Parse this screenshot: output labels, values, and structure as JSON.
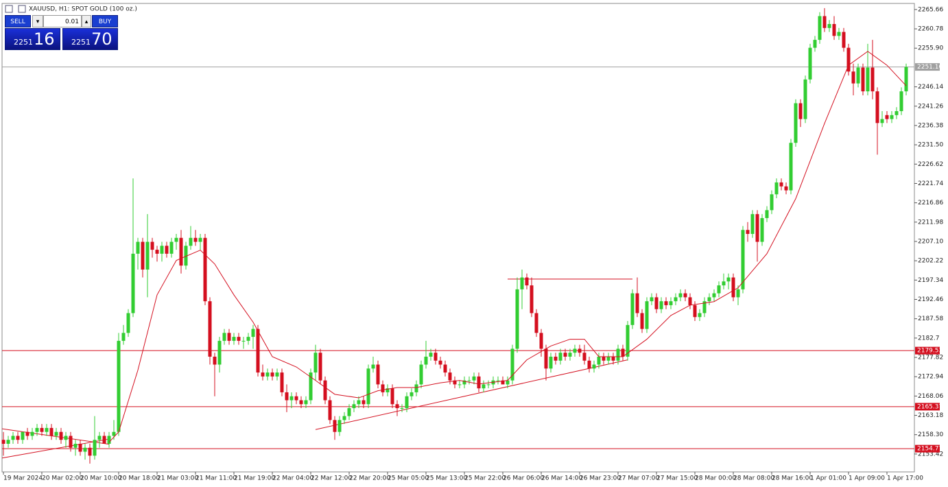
{
  "chart_data": {
    "type": "candlestick",
    "title": "XAUUSD, H1:  SPOT GOLD (100 oz.)",
    "trade_panel": {
      "sell": "SELL",
      "lot": "0.01",
      "buy": "BUY",
      "bid_big": "2251",
      "bid_small": "16",
      "ask_big": "2251",
      "ask_small": "70"
    },
    "up_color": "#32cd32",
    "down_color": "#d40f1f",
    "ylim": [
      2148.9,
      2267.2
    ],
    "yticks": [
      2265.66,
      2260.78,
      {
        "value": 2255.9,
        "label": "2255.90"
      },
      2246.14,
      2241.26,
      2236.38,
      {
        "value": 2231.5,
        "label": "2231.50"
      },
      2226.62,
      2221.74,
      2216.86,
      2211.98,
      {
        "value": 2207.1,
        "label": "2207.10"
      },
      2202.22,
      2197.34,
      2192.46,
      2187.58,
      2182.7,
      2177.82,
      2172.94,
      2168.06,
      2163.18,
      {
        "value": 2158.3,
        "label": "2158.30"
      },
      2153.42
    ],
    "xticks": [
      {
        "value": 0,
        "label": "19 Mar 2024"
      },
      {
        "value": 8,
        "label": "20 Mar 02:00"
      },
      {
        "value": 16,
        "label": "20 Mar 10:00"
      },
      {
        "value": 24,
        "label": "20 Mar 18:00"
      },
      {
        "value": 32,
        "label": "21 Mar 03:00"
      },
      {
        "value": 40,
        "label": "21 Mar 11:00"
      },
      {
        "value": 48,
        "label": "21 Mar 19:00"
      },
      {
        "value": 56,
        "label": "22 Mar 04:00"
      },
      {
        "value": 64,
        "label": "22 Mar 12:00"
      },
      {
        "value": 72,
        "label": "22 Mar 20:00"
      },
      {
        "value": 80,
        "label": "25 Mar 05:00"
      },
      {
        "value": 88,
        "label": "25 Mar 13:00"
      },
      {
        "value": 96,
        "label": "25 Mar 22:00"
      },
      {
        "value": 104,
        "label": "26 Mar 06:00"
      },
      {
        "value": 112,
        "label": "26 Mar 14:00"
      },
      {
        "value": 120,
        "label": "26 Mar 23:00"
      },
      {
        "value": 128,
        "label": "27 Mar 07:00"
      },
      {
        "value": 136,
        "label": "27 Mar 15:00"
      },
      {
        "value": 144,
        "label": "28 Mar 00:00"
      },
      {
        "value": 152,
        "label": "28 Mar 08:00"
      },
      {
        "value": 160,
        "label": "28 Mar 16:00"
      },
      {
        "value": 168,
        "label": "1 Apr 01:00"
      },
      {
        "value": 176,
        "label": "1 Apr 09:00"
      },
      {
        "value": 184,
        "label": "1 Apr 17:00"
      }
    ],
    "candles": [
      [
        2157,
        2159,
        2153,
        2156
      ],
      [
        2156,
        2158,
        2155,
        2157
      ],
      [
        2157,
        2159,
        2156,
        2158
      ],
      [
        2158,
        2159,
        2156,
        2157
      ],
      [
        2157,
        2159,
        2156,
        2159
      ],
      [
        2159,
        2160,
        2157,
        2158
      ],
      [
        2158,
        2160,
        2157,
        2159
      ],
      [
        2159,
        2161,
        2158,
        2160
      ],
      [
        2160,
        2161,
        2158,
        2159
      ],
      [
        2159,
        2161,
        2158,
        2160
      ],
      [
        2160,
        2161,
        2157,
        2158
      ],
      [
        2158,
        2160,
        2157,
        2159
      ],
      [
        2159,
        2160,
        2156,
        2157
      ],
      [
        2157,
        2159,
        2155,
        2158
      ],
      [
        2158,
        2159,
        2154,
        2155
      ],
      [
        2155,
        2157,
        2153,
        2156
      ],
      [
        2156,
        2157,
        2153,
        2154
      ],
      [
        2154,
        2156,
        2152,
        2155
      ],
      [
        2155,
        2156,
        2151,
        2153
      ],
      [
        2153,
        2163,
        2152,
        2157
      ],
      [
        2157,
        2159,
        2155,
        2158
      ],
      [
        2158,
        2159,
        2156,
        2156
      ],
      [
        2156,
        2159,
        2155,
        2158
      ],
      [
        2158,
        2162,
        2157,
        2159
      ],
      [
        2159,
        2184,
        2158,
        2182
      ],
      [
        2182,
        2186,
        2181,
        2184
      ],
      [
        2184,
        2190,
        2183,
        2189
      ],
      [
        2189,
        2223,
        2188,
        2204
      ],
      [
        2204,
        2208,
        2200,
        2207
      ],
      [
        2207,
        2208,
        2198,
        2200
      ],
      [
        2200,
        2214,
        2193,
        2207
      ],
      [
        2207,
        2208,
        2203,
        2205
      ],
      [
        2205,
        2206,
        2202,
        2204
      ],
      [
        2204,
        2207,
        2202,
        2206
      ],
      [
        2206,
        2207,
        2203,
        2204
      ],
      [
        2204,
        2208,
        2203,
        2207
      ],
      [
        2207,
        2209,
        2205,
        2208
      ],
      [
        2208,
        2210,
        2199,
        2201
      ],
      [
        2201,
        2207,
        2200,
        2206
      ],
      [
        2206,
        2211,
        2205,
        2208
      ],
      [
        2208,
        2210,
        2206,
        2207
      ],
      [
        2207,
        2209,
        2205,
        2208
      ],
      [
        2208,
        2209,
        2191,
        2192
      ],
      [
        2192,
        2193,
        2176,
        2178
      ],
      [
        2178,
        2179,
        2168,
        2176
      ],
      [
        2176,
        2183,
        2174,
        2182
      ],
      [
        2182,
        2185,
        2181,
        2184
      ],
      [
        2184,
        2185,
        2181,
        2182
      ],
      [
        2182,
        2184,
        2181,
        2183
      ],
      [
        2183,
        2184,
        2181,
        2182
      ],
      [
        2182,
        2183,
        2180,
        2182
      ],
      [
        2182,
        2184,
        2181,
        2183
      ],
      [
        2183,
        2186,
        2180,
        2185
      ],
      [
        2185,
        2186,
        2173,
        2174
      ],
      [
        2174,
        2176,
        2172,
        2173
      ],
      [
        2173,
        2175,
        2172,
        2174
      ],
      [
        2174,
        2175,
        2172,
        2173
      ],
      [
        2173,
        2175,
        2172,
        2174
      ],
      [
        2174,
        2175,
        2168,
        2169
      ],
      [
        2169,
        2171,
        2164,
        2167
      ],
      [
        2167,
        2169,
        2165,
        2168
      ],
      [
        2168,
        2169,
        2166,
        2167
      ],
      [
        2167,
        2168,
        2165,
        2166
      ],
      [
        2166,
        2168,
        2165,
        2167
      ],
      [
        2167,
        2175,
        2166,
        2174
      ],
      [
        2174,
        2181,
        2172,
        2179
      ],
      [
        2179,
        2180,
        2171,
        2172
      ],
      [
        2172,
        2173,
        2166,
        2167
      ],
      [
        2167,
        2168,
        2161,
        2162
      ],
      [
        2162,
        2163,
        2157,
        2159
      ],
      [
        2159,
        2163,
        2158,
        2162
      ],
      [
        2162,
        2164,
        2161,
        2163
      ],
      [
        2163,
        2166,
        2162,
        2165
      ],
      [
        2165,
        2167,
        2164,
        2166
      ],
      [
        2166,
        2168,
        2165,
        2167
      ],
      [
        2167,
        2168,
        2165,
        2166
      ],
      [
        2166,
        2176,
        2165,
        2175
      ],
      [
        2175,
        2178,
        2174,
        2176
      ],
      [
        2176,
        2177,
        2170,
        2171
      ],
      [
        2171,
        2172,
        2168,
        2169
      ],
      [
        2169,
        2171,
        2168,
        2170
      ],
      [
        2170,
        2171,
        2165,
        2166
      ],
      [
        2166,
        2167,
        2163,
        2165
      ],
      [
        2165,
        2166,
        2164,
        2165
      ],
      [
        2165,
        2169,
        2164,
        2168
      ],
      [
        2168,
        2170,
        2167,
        2169
      ],
      [
        2169,
        2172,
        2168,
        2171
      ],
      [
        2171,
        2177,
        2170,
        2176
      ],
      [
        2176,
        2182,
        2175,
        2178
      ],
      [
        2178,
        2180,
        2177,
        2179
      ],
      [
        2179,
        2180,
        2176,
        2177
      ],
      [
        2177,
        2178,
        2175,
        2176
      ],
      [
        2176,
        2177,
        2173,
        2174
      ],
      [
        2174,
        2175,
        2171,
        2172
      ],
      [
        2172,
        2173,
        2170,
        2171
      ],
      [
        2171,
        2172,
        2170,
        2171
      ],
      [
        2171,
        2173,
        2170,
        2172
      ],
      [
        2172,
        2173,
        2171,
        2172
      ],
      [
        2172,
        2174,
        2171,
        2173
      ],
      [
        2173,
        2174,
        2169,
        2170
      ],
      [
        2170,
        2172,
        2169,
        2171
      ],
      [
        2171,
        2172,
        2170,
        2171
      ],
      [
        2171,
        2173,
        2170,
        2172
      ],
      [
        2172,
        2173,
        2171,
        2172
      ],
      [
        2172,
        2173,
        2171,
        2171
      ],
      [
        2171,
        2173,
        2170,
        2172
      ],
      [
        2172,
        2181,
        2171,
        2180
      ],
      [
        2180,
        2198,
        2179,
        2195
      ],
      [
        2195,
        2200,
        2190,
        2198
      ],
      [
        2198,
        2199,
        2195,
        2196
      ],
      [
        2196,
        2198,
        2188,
        2189
      ],
      [
        2189,
        2190,
        2183,
        2184
      ],
      [
        2184,
        2185,
        2178,
        2180
      ],
      [
        2180,
        2181,
        2172,
        2175
      ],
      [
        2175,
        2179,
        2174,
        2178
      ],
      [
        2178,
        2179,
        2176,
        2177
      ],
      [
        2177,
        2180,
        2176,
        2179
      ],
      [
        2179,
        2180,
        2177,
        2178
      ],
      [
        2178,
        2180,
        2177,
        2179
      ],
      [
        2179,
        2181,
        2178,
        2180
      ],
      [
        2180,
        2181,
        2178,
        2179
      ],
      [
        2179,
        2181,
        2176,
        2177
      ],
      [
        2177,
        2178,
        2174,
        2175
      ],
      [
        2175,
        2177,
        2174,
        2176
      ],
      [
        2176,
        2179,
        2175,
        2178
      ],
      [
        2178,
        2179,
        2176,
        2177
      ],
      [
        2177,
        2179,
        2176,
        2178
      ],
      [
        2178,
        2179,
        2176,
        2177
      ],
      [
        2177,
        2181,
        2176,
        2180
      ],
      [
        2180,
        2181,
        2177,
        2178
      ],
      [
        2178,
        2187,
        2177,
        2186
      ],
      [
        2186,
        2195,
        2185,
        2194
      ],
      [
        2194,
        2198,
        2188,
        2189
      ],
      [
        2189,
        2190,
        2184,
        2185
      ],
      [
        2185,
        2193,
        2184,
        2192
      ],
      [
        2192,
        2194,
        2191,
        2193
      ],
      [
        2193,
        2194,
        2189,
        2190
      ],
      [
        2190,
        2193,
        2189,
        2192
      ],
      [
        2192,
        2193,
        2190,
        2191
      ],
      [
        2191,
        2193,
        2190,
        2192
      ],
      [
        2192,
        2194,
        2191,
        2193
      ],
      [
        2193,
        2195,
        2192,
        2194
      ],
      [
        2194,
        2195,
        2192,
        2193
      ],
      [
        2193,
        2194,
        2190,
        2191
      ],
      [
        2191,
        2192,
        2187,
        2188
      ],
      [
        2188,
        2190,
        2187,
        2189
      ],
      [
        2189,
        2193,
        2188,
        2192
      ],
      [
        2192,
        2194,
        2191,
        2193
      ],
      [
        2193,
        2195,
        2192,
        2194
      ],
      [
        2194,
        2197,
        2193,
        2196
      ],
      [
        2196,
        2199,
        2195,
        2197
      ],
      [
        2197,
        2199,
        2195,
        2198
      ],
      [
        2198,
        2199,
        2192,
        2193
      ],
      [
        2193,
        2196,
        2191,
        2195
      ],
      [
        2195,
        2211,
        2194,
        2210
      ],
      [
        2210,
        2212,
        2207,
        2209
      ],
      [
        2209,
        2215,
        2208,
        2214
      ],
      [
        2214,
        2215,
        2202,
        2207
      ],
      [
        2207,
        2214,
        2206,
        2213
      ],
      [
        2213,
        2216,
        2212,
        2215
      ],
      [
        2215,
        2220,
        2214,
        2219
      ],
      [
        2219,
        2223,
        2218,
        2222
      ],
      [
        2222,
        2223,
        2220,
        2221
      ],
      [
        2221,
        2222,
        2219,
        2220
      ],
      [
        2220,
        2233,
        2219,
        2232
      ],
      [
        2232,
        2243,
        2231,
        2242
      ],
      [
        2242,
        2243,
        2236,
        2238
      ],
      [
        2238,
        2249,
        2237,
        2248
      ],
      [
        2248,
        2257,
        2247,
        2256
      ],
      [
        2256,
        2259,
        2255,
        2258
      ],
      [
        2258,
        2265,
        2257,
        2264
      ],
      [
        2264,
        2266,
        2260,
        2261
      ],
      [
        2261,
        2263,
        2260,
        2262
      ],
      [
        2262,
        2264,
        2258,
        2259
      ],
      [
        2259,
        2261,
        2258,
        2260
      ],
      [
        2260,
        2261,
        2255,
        2256
      ],
      [
        2256,
        2257,
        2249,
        2250
      ],
      [
        2250,
        2252,
        2244,
        2247
      ],
      [
        2247,
        2252,
        2246,
        2251
      ],
      [
        2251,
        2252,
        2244,
        2245
      ],
      [
        2245,
        2257,
        2244,
        2251
      ],
      [
        2251,
        2258,
        2243,
        2245
      ],
      [
        2245,
        2246,
        2229,
        2237
      ],
      [
        2237,
        2240,
        2236,
        2238
      ],
      [
        2239,
        2240,
        2237,
        2238
      ],
      [
        2238,
        2240,
        2237,
        2239
      ],
      [
        2239,
        2241,
        2238,
        2240
      ],
      [
        2240,
        2246,
        2239,
        2245
      ],
      [
        2245,
        2252,
        2244,
        2251.16
      ]
    ],
    "moving_average": {
      "color": "#d40f1f",
      "x": [
        22,
        24,
        28,
        32,
        36,
        41,
        44,
        48,
        52,
        56,
        61,
        65,
        69,
        74,
        78,
        82,
        86,
        91,
        95,
        99,
        105,
        109,
        114,
        118,
        121,
        124,
        129,
        134,
        139,
        143,
        148,
        153,
        159,
        165,
        171,
        176,
        180,
        184,
        188
      ],
      "values": [
        2156.4,
        2159,
        2174.6,
        2193.6,
        2202.3,
        2204.9,
        2201.4,
        2193.6,
        2186.7,
        2178,
        2175.4,
        2172,
        2168.5,
        2167.6,
        2169.4,
        2170.2,
        2170.2,
        2171.4,
        2172,
        2171.1,
        2172,
        2177.2,
        2180.7,
        2182.4,
        2182.4,
        2178,
        2178,
        2182.4,
        2188.4,
        2191,
        2191.9,
        2195.4,
        2204,
        2217.9,
        2236.9,
        2251.6,
        2255.1,
        2251.6,
        2246.4
      ]
    },
    "levels": [
      {
        "value": 2251.16,
        "color": "#a0a0a0"
      },
      {
        "value": 2179.53,
        "color": "#d40f1f"
      },
      {
        "value": 2165.37,
        "color": "#d40f1f"
      },
      {
        "value": 2154.77,
        "color": "#d40f1f"
      }
    ],
    "trendlines": [
      {
        "x": [
          65,
          130
        ],
        "y": [
          2159.6,
          2177.2
        ],
        "color": "#d40f1f"
      },
      {
        "x": [
          105,
          131
        ],
        "y": [
          2197.6,
          2197.6
        ],
        "color": "#d40f1f"
      },
      {
        "x": [
          -1,
          22
        ],
        "y": [
          2159.8,
          2155.9
        ],
        "color": "#d40f1f"
      },
      {
        "x": [
          -1,
          22
        ],
        "y": [
          2152.4,
          2157.2
        ],
        "color": "#d40f1f"
      }
    ]
  }
}
